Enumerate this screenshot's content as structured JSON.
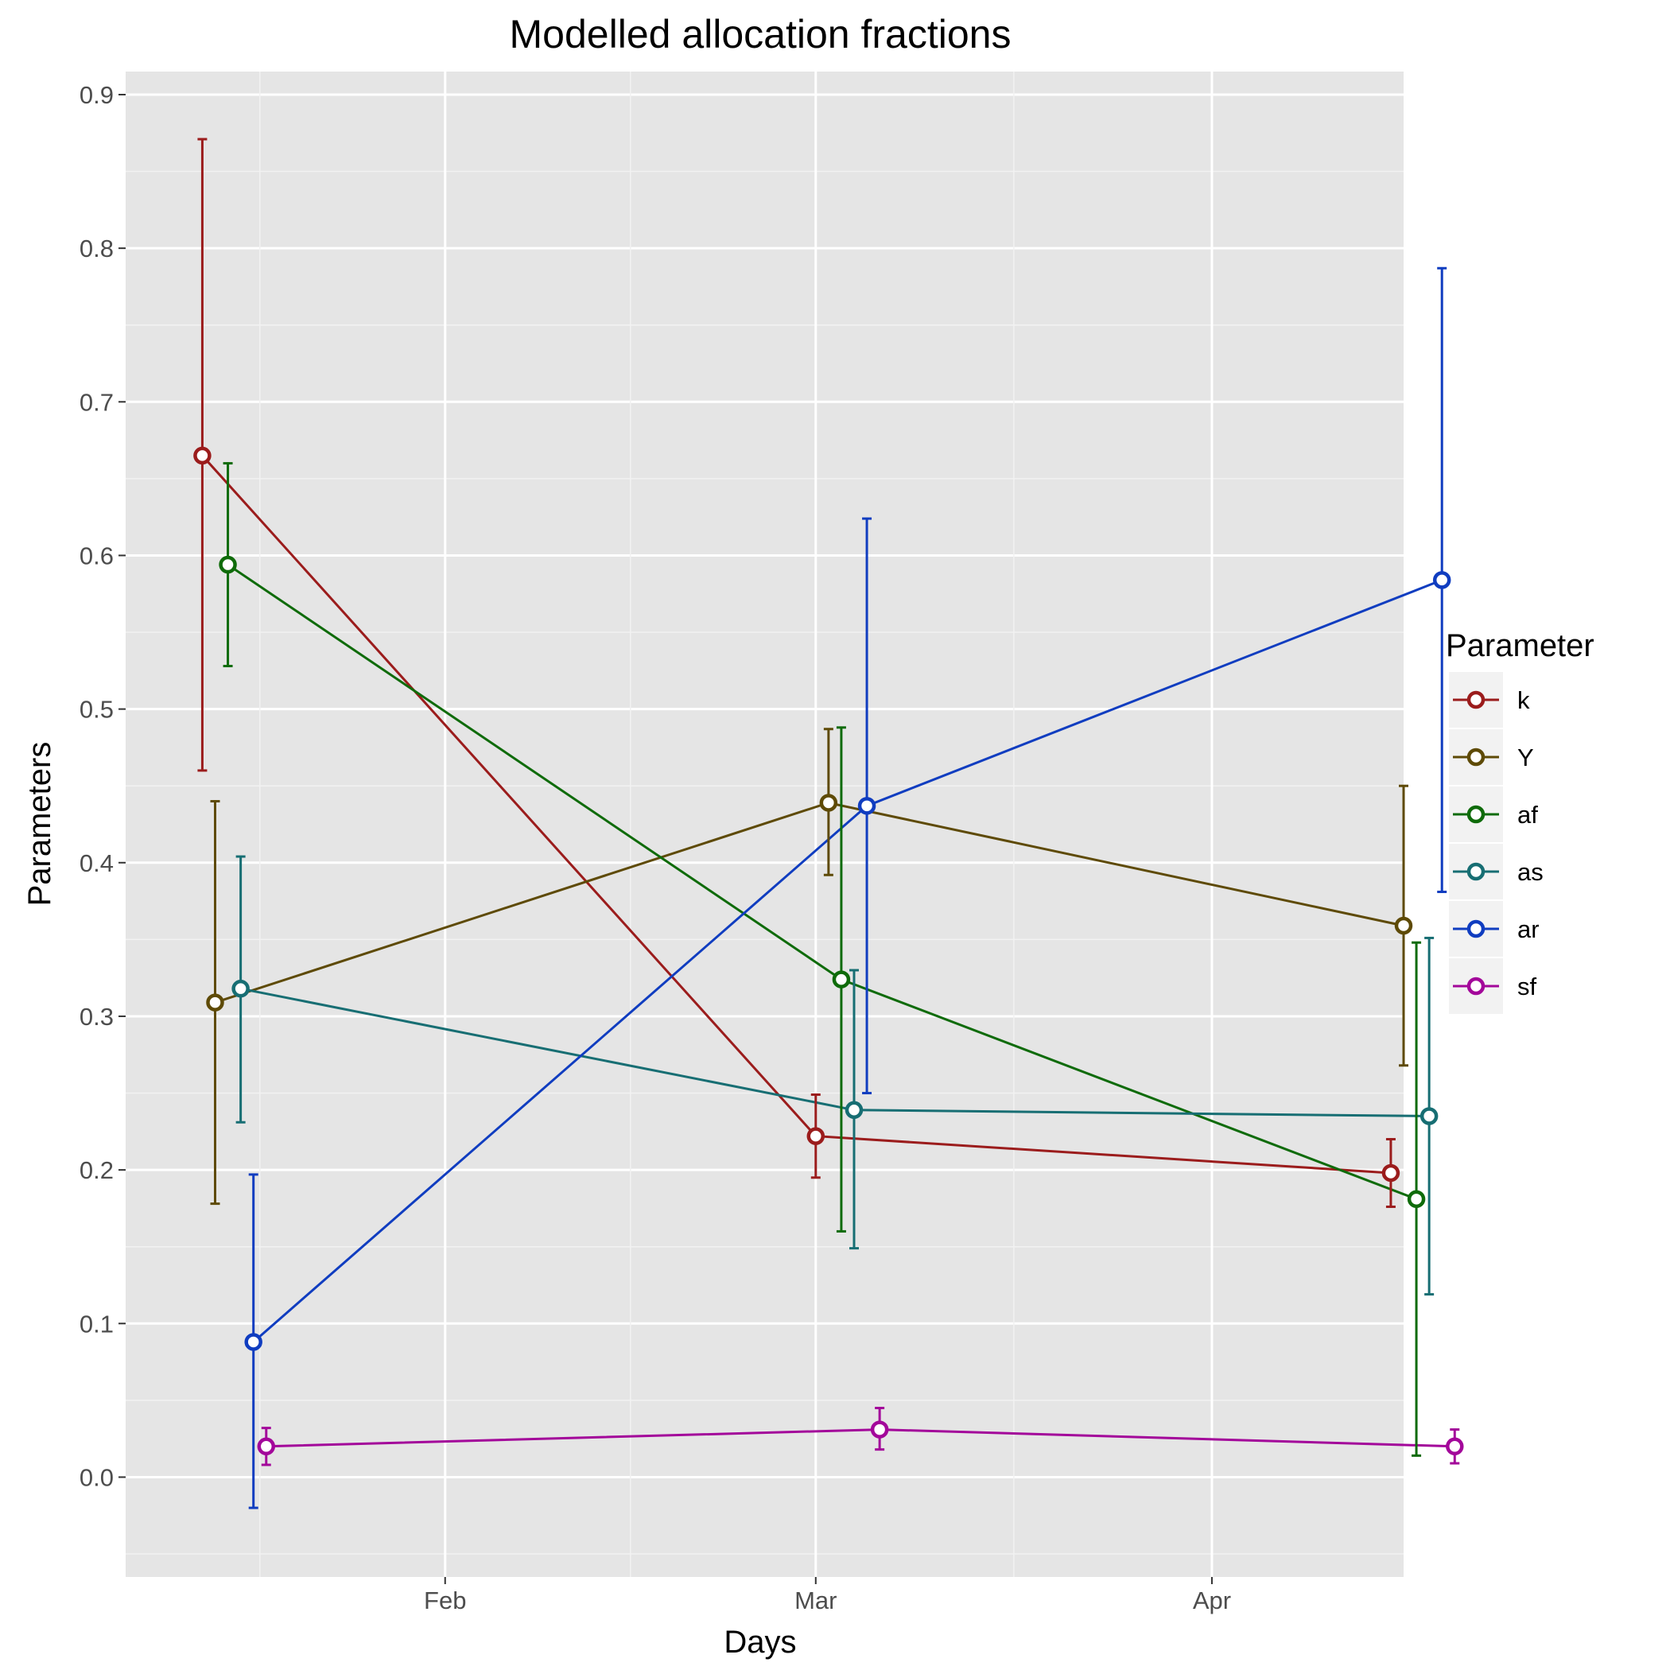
{
  "chart_data": {
    "type": "line",
    "title": "Modelled allocation fractions",
    "xlabel": "Days",
    "ylabel": "Parameters",
    "x_ticks": [
      "Feb",
      "Mar",
      "Apr"
    ],
    "x_range": [
      "2016-01-07",
      "2016-04-16"
    ],
    "ylim": [
      -0.065,
      0.915
    ],
    "y_ticks": [
      "0.0",
      "0.1",
      "0.2",
      "0.3",
      "0.4",
      "0.5",
      "0.6",
      "0.7",
      "0.8",
      "0.9"
    ],
    "grid": true,
    "error_bars": true,
    "legend": {
      "title": "Parameter",
      "position": "right"
    },
    "series": [
      {
        "name": "k",
        "color": "#9b1c1c",
        "points": [
          {
            "x": "2016-01-13",
            "y": 0.665,
            "ymin": 0.46,
            "ymax": 0.871
          },
          {
            "x": "2016-03-01",
            "y": 0.222,
            "ymin": 0.195,
            "ymax": 0.249
          },
          {
            "x": "2016-04-15",
            "y": 0.198,
            "ymin": 0.176,
            "ymax": 0.22
          }
        ]
      },
      {
        "name": "Y",
        "color": "#5e4a06",
        "points": [
          {
            "x": "2016-01-14",
            "y": 0.309,
            "ymin": 0.178,
            "ymax": 0.44
          },
          {
            "x": "2016-03-02",
            "y": 0.439,
            "ymin": 0.392,
            "ymax": 0.487
          },
          {
            "x": "2016-04-16",
            "y": 0.359,
            "ymin": 0.268,
            "ymax": 0.45
          }
        ]
      },
      {
        "name": "af",
        "color": "#0f6b0a",
        "points": [
          {
            "x": "2016-01-15",
            "y": 0.594,
            "ymin": 0.528,
            "ymax": 0.66
          },
          {
            "x": "2016-03-03",
            "y": 0.324,
            "ymin": 0.16,
            "ymax": 0.488
          },
          {
            "x": "2016-04-17",
            "y": 0.181,
            "ymin": 0.014,
            "ymax": 0.348
          }
        ]
      },
      {
        "name": "as",
        "color": "#176e73",
        "points": [
          {
            "x": "2016-01-16",
            "y": 0.318,
            "ymin": 0.231,
            "ymax": 0.404
          },
          {
            "x": "2016-03-04",
            "y": 0.239,
            "ymin": 0.149,
            "ymax": 0.33
          },
          {
            "x": "2016-04-18",
            "y": 0.235,
            "ymin": 0.119,
            "ymax": 0.351
          }
        ]
      },
      {
        "name": "ar",
        "color": "#103dc0",
        "points": [
          {
            "x": "2016-01-17",
            "y": 0.088,
            "ymin": -0.02,
            "ymax": 0.197
          },
          {
            "x": "2016-03-05",
            "y": 0.437,
            "ymin": 0.25,
            "ymax": 0.624
          },
          {
            "x": "2016-04-19",
            "y": 0.584,
            "ymin": 0.381,
            "ymax": 0.787
          }
        ]
      },
      {
        "name": "sf",
        "color": "#a3079a",
        "points": [
          {
            "x": "2016-01-18",
            "y": 0.02,
            "ymin": 0.008,
            "ymax": 0.032
          },
          {
            "x": "2016-03-06",
            "y": 0.031,
            "ymin": 0.018,
            "ymax": 0.045
          },
          {
            "x": "2016-04-20",
            "y": 0.02,
            "ymin": 0.009,
            "ymax": 0.031
          }
        ]
      }
    ]
  }
}
